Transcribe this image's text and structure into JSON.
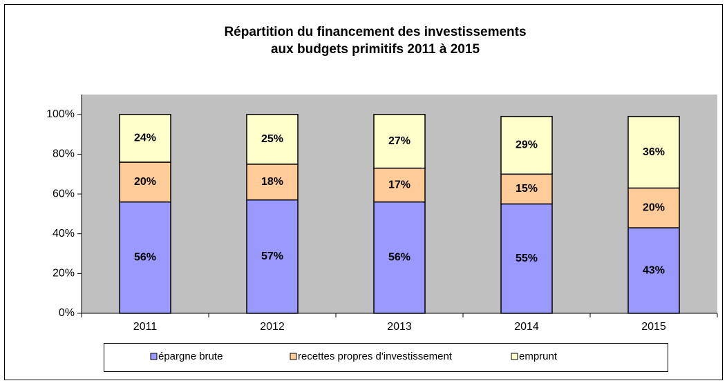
{
  "chart_data": {
    "type": "stacked_bar",
    "title": [
      "Répartition du financement des investissements",
      "aux budgets primitifs 2011 à 2015"
    ],
    "categories": [
      "2011",
      "2012",
      "2013",
      "2014",
      "2015"
    ],
    "series": [
      {
        "name": "épargne brute",
        "color": "#9999ff",
        "values": [
          56,
          57,
          56,
          55,
          43
        ],
        "value_labels": [
          "56%",
          "57%",
          "56%",
          "55%",
          "43%"
        ]
      },
      {
        "name": "recettes propres d'investissement",
        "color": "#ffcc99",
        "values": [
          20,
          18,
          17,
          15,
          20
        ],
        "value_labels": [
          "20%",
          "18%",
          "17%",
          "15%",
          "20%"
        ]
      },
      {
        "name": "emprunt",
        "color": "#ffffcc",
        "values": [
          24,
          25,
          27,
          29,
          36
        ],
        "value_labels": [
          "24%",
          "25%",
          "27%",
          "29%",
          "36%"
        ]
      }
    ],
    "ylim": [
      0,
      110
    ],
    "yticks": [
      {
        "value": 0,
        "label": "0%"
      },
      {
        "value": 20,
        "label": "20%"
      },
      {
        "value": 40,
        "label": "40%"
      },
      {
        "value": 60,
        "label": "60%"
      },
      {
        "value": 80,
        "label": "80%"
      },
      {
        "value": 100,
        "label": "100%"
      }
    ],
    "legend": "bottom"
  }
}
